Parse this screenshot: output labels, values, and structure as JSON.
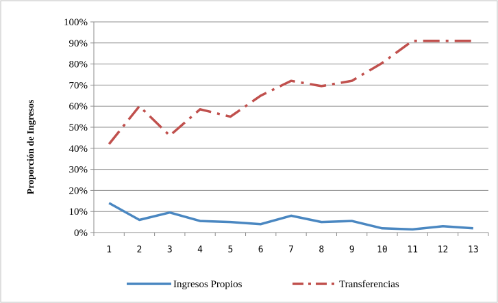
{
  "chart_data": {
    "type": "line",
    "ylabel": "Proporción de Ingresos",
    "xlabel": "",
    "categories": [
      "1",
      "2",
      "3",
      "4",
      "5",
      "6",
      "7",
      "8",
      "9",
      "10",
      "11",
      "12",
      "13"
    ],
    "yticks": [
      "0%",
      "10%",
      "20%",
      "30%",
      "40%",
      "50%",
      "60%",
      "70%",
      "80%",
      "90%",
      "100%"
    ],
    "ylim": [
      0,
      100
    ],
    "grid": true,
    "legend_position": "bottom",
    "series": [
      {
        "name": "Ingresos Propios",
        "color": "#4a87c1",
        "style": "solid",
        "values": [
          14,
          6,
          9.5,
          5.5,
          5,
          4,
          8,
          5,
          5.5,
          2,
          1.5,
          3,
          2
        ]
      },
      {
        "name": "Transferencias",
        "color": "#c0504d",
        "style": "dash-dot",
        "values": [
          42,
          60,
          46,
          58.5,
          55,
          65,
          72,
          69.5,
          72,
          80.5,
          91,
          91,
          91
        ]
      }
    ]
  }
}
